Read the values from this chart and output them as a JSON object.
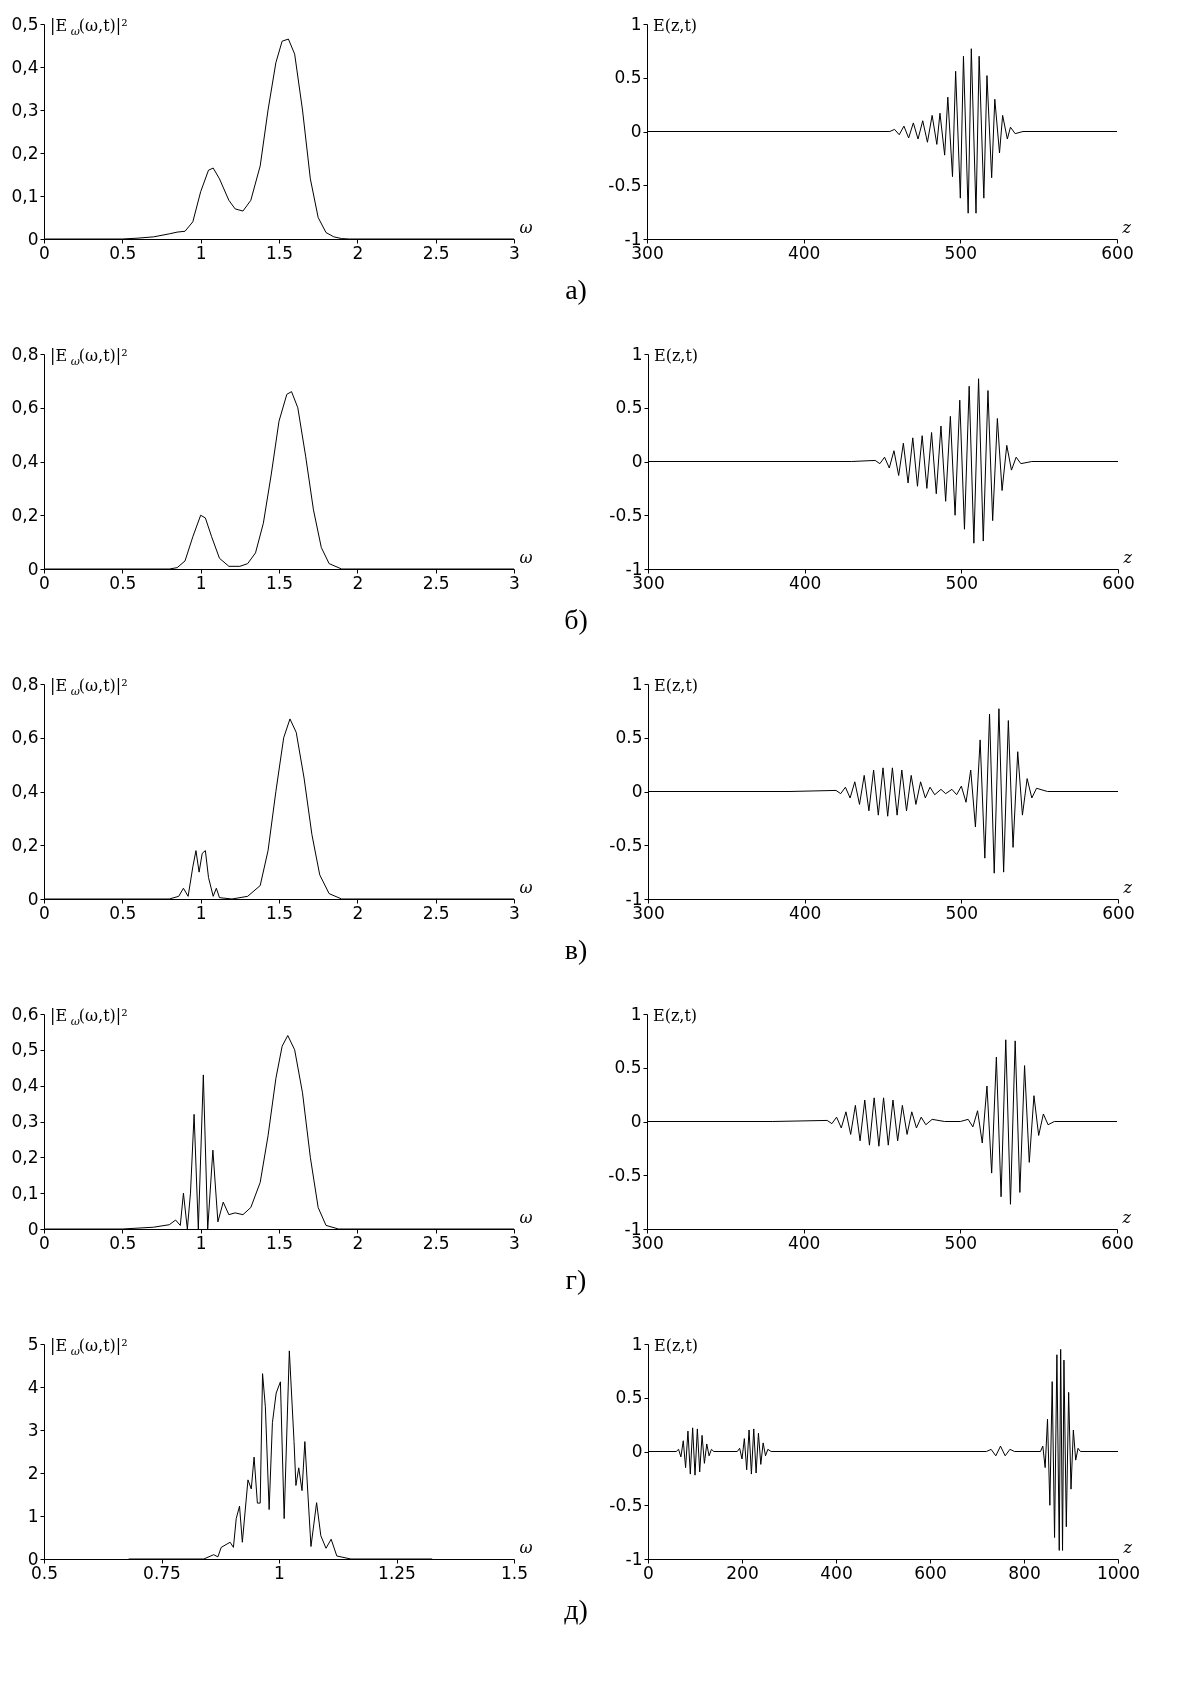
{
  "chart_data": [
    {
      "type": "line",
      "ylabel": "|E$_{ω}$(ω,t)|²",
      "xlabel": "ω",
      "color": "#000000",
      "annotations": [
        "а)"
      ],
      "xlim": [
        0,
        3
      ],
      "xticks": [
        0,
        0.5,
        1,
        1.5,
        2,
        2.5,
        3
      ],
      "ylim": [
        0,
        0.5
      ],
      "yticks": [
        0,
        {
          "value": 0.1,
          "label": "0,1"
        },
        {
          "value": 0.2,
          "label": "0,2"
        },
        {
          "value": 0.3,
          "label": "0,3"
        },
        {
          "value": 0.4,
          "label": "0,4"
        },
        {
          "value": 0.5,
          "label": "0,5"
        }
      ],
      "x": [
        0,
        0.5,
        0.6,
        0.7,
        0.8,
        0.85,
        0.9,
        0.95,
        1.0,
        1.05,
        1.08,
        1.12,
        1.18,
        1.22,
        1.27,
        1.32,
        1.38,
        1.43,
        1.48,
        1.52,
        1.56,
        1.6,
        1.65,
        1.7,
        1.75,
        1.8,
        1.85,
        1.9,
        1.95,
        2.0,
        3.0
      ],
      "values": [
        0,
        0,
        0.002,
        0.005,
        0.012,
        0.016,
        0.018,
        0.04,
        0.11,
        0.16,
        0.165,
        0.14,
        0.09,
        0.07,
        0.065,
        0.09,
        0.17,
        0.3,
        0.41,
        0.46,
        0.465,
        0.43,
        0.3,
        0.14,
        0.05,
        0.015,
        0.005,
        0.001,
        0,
        0,
        0
      ]
    },
    {
      "type": "line",
      "ylabel": "E(z,t)",
      "xlabel": "z",
      "color": "#000000",
      "xlim": [
        300,
        600
      ],
      "xticks": [
        300,
        400,
        500,
        600
      ],
      "ylim": [
        -1,
        1
      ],
      "yticks": [
        -1,
        -0.5,
        0,
        0.5,
        1
      ],
      "x": [
        300,
        420,
        455,
        458,
        461,
        464,
        467,
        470,
        473,
        476,
        479,
        482,
        485,
        487,
        490,
        492,
        495,
        497,
        500,
        502,
        505,
        507,
        510,
        512,
        515,
        517,
        520,
        522,
        525,
        527,
        530,
        532,
        535,
        540,
        600
      ],
      "values": [
        0,
        0,
        0,
        0.02,
        -0.03,
        0.05,
        -0.06,
        0.08,
        -0.07,
        0.1,
        -0.1,
        0.15,
        -0.12,
        0.17,
        -0.22,
        0.32,
        -0.42,
        0.56,
        -0.62,
        0.7,
        -0.76,
        0.77,
        -0.76,
        0.7,
        -0.62,
        0.52,
        -0.43,
        0.3,
        -0.2,
        0.15,
        -0.07,
        0.04,
        -0.02,
        0,
        0
      ]
    },
    {
      "type": "line",
      "ylabel": "|E$_{ω}$(ω,t)|²",
      "xlabel": "ω",
      "color": "#000000",
      "annotations": [
        "б)"
      ],
      "xlim": [
        0,
        3
      ],
      "xticks": [
        0,
        0.5,
        1,
        1.5,
        2,
        2.5,
        3
      ],
      "ylim": [
        0,
        0.8
      ],
      "yticks": [
        0,
        {
          "value": 0.2,
          "label": "0,2"
        },
        {
          "value": 0.4,
          "label": "0,4"
        },
        {
          "value": 0.6,
          "label": "0,6"
        },
        {
          "value": 0.8,
          "label": "0,8"
        }
      ],
      "x": [
        0,
        0.8,
        0.85,
        0.9,
        0.95,
        1.0,
        1.03,
        1.07,
        1.12,
        1.18,
        1.25,
        1.3,
        1.35,
        1.4,
        1.45,
        1.5,
        1.55,
        1.58,
        1.62,
        1.67,
        1.72,
        1.77,
        1.82,
        1.9,
        3
      ],
      "values": [
        0,
        0,
        0.005,
        0.03,
        0.12,
        0.2,
        0.19,
        0.12,
        0.04,
        0.01,
        0.01,
        0.02,
        0.06,
        0.17,
        0.35,
        0.55,
        0.65,
        0.66,
        0.6,
        0.42,
        0.22,
        0.08,
        0.02,
        0,
        0
      ]
    },
    {
      "type": "line",
      "ylabel": "E(z,t)",
      "xlabel": "z",
      "color": "#000000",
      "xlim": [
        300,
        600
      ],
      "xticks": [
        300,
        400,
        500,
        600
      ],
      "ylim": [
        -1,
        1
      ],
      "yticks": [
        -1,
        -0.5,
        0,
        0.5,
        1
      ],
      "x": [
        300,
        430,
        445,
        448,
        451,
        454,
        457,
        460,
        463,
        466,
        469,
        472,
        475,
        478,
        481,
        484,
        487,
        490,
        493,
        496,
        499,
        502,
        505,
        508,
        511,
        514,
        517,
        520,
        523,
        526,
        529,
        532,
        535,
        538,
        545,
        600
      ],
      "values": [
        0,
        0,
        0.01,
        -0.02,
        0.04,
        -0.06,
        0.1,
        -0.13,
        0.17,
        -0.2,
        0.22,
        -0.23,
        0.24,
        -0.25,
        0.27,
        -0.3,
        0.33,
        -0.37,
        0.42,
        -0.5,
        0.57,
        -0.63,
        0.7,
        -0.76,
        0.77,
        -0.74,
        0.66,
        -0.55,
        0.4,
        -0.27,
        0.15,
        -0.08,
        0.04,
        -0.02,
        0,
        0
      ]
    },
    {
      "type": "line",
      "ylabel": "|E$_{ω}$(ω,t)|²",
      "xlabel": "ω",
      "color": "#000000",
      "annotations": [
        "в)"
      ],
      "xlim": [
        0,
        3
      ],
      "xticks": [
        0,
        0.5,
        1,
        1.5,
        2,
        2.5,
        3
      ],
      "ylim": [
        0,
        0.8
      ],
      "yticks": [
        0,
        {
          "value": 0.2,
          "label": "0,2"
        },
        {
          "value": 0.4,
          "label": "0,4"
        },
        {
          "value": 0.6,
          "label": "0,6"
        },
        {
          "value": 0.8,
          "label": "0,8"
        }
      ],
      "x": [
        0,
        0.8,
        0.86,
        0.89,
        0.92,
        0.95,
        0.97,
        0.99,
        1.01,
        1.03,
        1.05,
        1.08,
        1.1,
        1.12,
        1.2,
        1.3,
        1.38,
        1.43,
        1.48,
        1.53,
        1.57,
        1.61,
        1.66,
        1.71,
        1.76,
        1.82,
        1.9,
        3
      ],
      "values": [
        0,
        0,
        0.01,
        0.04,
        0.01,
        0.12,
        0.18,
        0.1,
        0.17,
        0.18,
        0.08,
        0.01,
        0.04,
        0.005,
        0,
        0.01,
        0.05,
        0.18,
        0.4,
        0.6,
        0.67,
        0.62,
        0.45,
        0.24,
        0.09,
        0.02,
        0,
        0
      ]
    },
    {
      "type": "line",
      "ylabel": "E(z,t)",
      "xlabel": "z",
      "color": "#000000",
      "xlim": [
        300,
        600
      ],
      "xticks": [
        300,
        400,
        500,
        600
      ],
      "ylim": [
        -1,
        1
      ],
      "yticks": [
        -1,
        -0.5,
        0,
        0.5,
        1
      ],
      "x": [
        300,
        390,
        420,
        423,
        426,
        429,
        432,
        435,
        438,
        441,
        444,
        447,
        450,
        453,
        456,
        459,
        462,
        465,
        468,
        471,
        474,
        477,
        480,
        483,
        487,
        490,
        494,
        497,
        500,
        503,
        506,
        509,
        512,
        515,
        518,
        521,
        524,
        527,
        530,
        533,
        536,
        539,
        542,
        545,
        548,
        555,
        600
      ],
      "values": [
        0,
        0,
        0.01,
        -0.02,
        0.04,
        -0.06,
        0.09,
        -0.12,
        0.15,
        -0.18,
        0.2,
        -0.22,
        0.22,
        -0.23,
        0.22,
        -0.22,
        0.2,
        -0.18,
        0.15,
        -0.12,
        0.09,
        -0.06,
        0.04,
        -0.03,
        0.02,
        -0.02,
        0.02,
        -0.03,
        0.05,
        -0.1,
        0.2,
        -0.33,
        0.48,
        -0.62,
        0.72,
        -0.76,
        0.77,
        -0.75,
        0.66,
        -0.52,
        0.37,
        -0.22,
        0.12,
        -0.06,
        0.03,
        0,
        0
      ]
    },
    {
      "type": "line",
      "ylabel": "|E$_{ω}$(ω,t)|²",
      "xlabel": "ω",
      "color": "#000000",
      "annotations": [
        "г)"
      ],
      "xlim": [
        0,
        3
      ],
      "xticks": [
        0,
        0.5,
        1,
        1.5,
        2,
        2.5,
        3
      ],
      "ylim": [
        0,
        0.6
      ],
      "yticks": [
        0,
        {
          "value": 0.1,
          "label": "0,1"
        },
        {
          "value": 0.2,
          "label": "0,2"
        },
        {
          "value": 0.3,
          "label": "0,3"
        },
        {
          "value": 0.4,
          "label": "0,4"
        },
        {
          "value": 0.5,
          "label": "0,5"
        },
        {
          "value": 0.6,
          "label": "0,6"
        }
      ],
      "x": [
        0,
        0.5,
        0.7,
        0.8,
        0.84,
        0.87,
        0.89,
        0.915,
        0.935,
        0.958,
        0.985,
        1.017,
        1.045,
        1.078,
        1.11,
        1.144,
        1.18,
        1.22,
        1.27,
        1.32,
        1.38,
        1.43,
        1.48,
        1.52,
        1.556,
        1.6,
        1.65,
        1.7,
        1.75,
        1.8,
        1.88,
        3
      ],
      "values": [
        0,
        0,
        0.005,
        0.012,
        0.025,
        0.01,
        0.1,
        0,
        0.1,
        0.32,
        0,
        0.43,
        0,
        0.22,
        0.02,
        0.075,
        0.04,
        0.045,
        0.04,
        0.06,
        0.13,
        0.26,
        0.42,
        0.51,
        0.54,
        0.5,
        0.38,
        0.2,
        0.06,
        0.01,
        0,
        0
      ]
    },
    {
      "type": "line",
      "ylabel": "E(z,t)",
      "xlabel": "z",
      "color": "#000000",
      "xlim": [
        300,
        600
      ],
      "xticks": [
        300,
        400,
        500,
        600
      ],
      "ylim": [
        -1,
        1
      ],
      "yticks": [
        -1,
        -0.5,
        0,
        0.5,
        1
      ],
      "x": [
        300,
        380,
        415,
        418,
        421,
        424,
        427,
        430,
        433,
        436,
        439,
        442,
        445,
        448,
        451,
        454,
        457,
        460,
        463,
        466,
        469,
        472,
        475,
        478,
        482,
        490,
        500,
        505,
        508,
        511,
        514,
        517,
        520,
        523,
        526,
        529,
        532,
        535,
        538,
        541,
        544,
        547,
        550,
        553,
        556,
        560,
        600
      ],
      "values": [
        0,
        0,
        0.01,
        -0.02,
        0.04,
        -0.06,
        0.09,
        -0.12,
        0.15,
        -0.18,
        0.2,
        -0.22,
        0.22,
        -0.23,
        0.22,
        -0.22,
        0.2,
        -0.18,
        0.15,
        -0.12,
        0.09,
        -0.06,
        0.04,
        -0.03,
        0.02,
        0,
        0,
        0.02,
        -0.05,
        0.1,
        -0.2,
        0.33,
        -0.48,
        0.6,
        -0.7,
        0.76,
        -0.77,
        0.75,
        -0.66,
        0.52,
        -0.38,
        0.24,
        -0.13,
        0.07,
        -0.03,
        0,
        0
      ]
    },
    {
      "type": "line",
      "ylabel": "|E$_{ω}$(ω,t)|²",
      "xlabel": "ω",
      "color": "#000000",
      "annotations": [
        "д)"
      ],
      "xlim": [
        0.5,
        1.5
      ],
      "xticks": [
        0.5,
        0.75,
        1,
        1.25,
        1.5
      ],
      "ylim": [
        0,
        5
      ],
      "yticks": [
        0,
        1,
        2,
        3,
        4,
        5
      ],
      "x": [
        0.68,
        0.84,
        0.861,
        0.87,
        0.877,
        0.896,
        0.903,
        0.909,
        0.916,
        0.922,
        0.934,
        0.941,
        0.947,
        0.954,
        0.96,
        0.965,
        0.971,
        0.979,
        0.986,
        0.994,
        1.003,
        1.011,
        1.022,
        1.032,
        1.036,
        1.042,
        1.049,
        1.055,
        1.068,
        1.08,
        1.089,
        1.1,
        1.111,
        1.123,
        1.153,
        1.326
      ],
      "values": [
        0,
        0,
        0.1,
        0.05,
        0.27,
        0.39,
        0.27,
        0.94,
        1.23,
        0.39,
        1.84,
        1.63,
        2.37,
        1.3,
        1.3,
        4.31,
        3.54,
        1.15,
        3.17,
        3.86,
        4.12,
        0.94,
        4.84,
        2.73,
        1.71,
        2.12,
        1.59,
        2.73,
        0.29,
        1.31,
        0.54,
        0.25,
        0.46,
        0.07,
        0,
        0
      ]
    },
    {
      "type": "line",
      "ylabel": "E(z,t)",
      "xlabel": "z",
      "color": "#000000",
      "xlim": [
        0,
        1000
      ],
      "xticks": [
        0,
        200,
        400,
        600,
        800,
        1000
      ],
      "ylim": [
        -1,
        1
      ],
      "yticks": [
        -1,
        -0.5,
        0,
        0.5,
        1
      ],
      "x": [
        0,
        60,
        65,
        70,
        75,
        80,
        85,
        90,
        95,
        100,
        105,
        110,
        115,
        120,
        125,
        130,
        135,
        140,
        190,
        195,
        200,
        205,
        210,
        215,
        220,
        225,
        230,
        235,
        240,
        245,
        250,
        255,
        262,
        720,
        730,
        740,
        750,
        760,
        770,
        780,
        835,
        840,
        845,
        850,
        855,
        860,
        865,
        870,
        875,
        878,
        882,
        885,
        890,
        895,
        900,
        905,
        910,
        915,
        920,
        1000
      ],
      "values": [
        0,
        0,
        0.02,
        -0.05,
        0.1,
        -0.15,
        0.19,
        -0.21,
        0.22,
        -0.22,
        0.21,
        -0.19,
        0.15,
        -0.11,
        0.07,
        -0.04,
        0.02,
        0,
        0,
        0.03,
        -0.07,
        0.12,
        -0.17,
        0.2,
        -0.21,
        0.21,
        -0.2,
        0.17,
        -0.12,
        0.08,
        -0.04,
        0.02,
        0,
        0,
        0.02,
        -0.04,
        0.05,
        -0.04,
        0.02,
        0,
        0,
        0.05,
        -0.15,
        0.3,
        -0.5,
        0.65,
        -0.8,
        0.9,
        -0.92,
        0.95,
        -0.92,
        0.85,
        -0.7,
        0.55,
        -0.35,
        0.2,
        -0.08,
        0.03,
        0,
        0
      ]
    }
  ]
}
